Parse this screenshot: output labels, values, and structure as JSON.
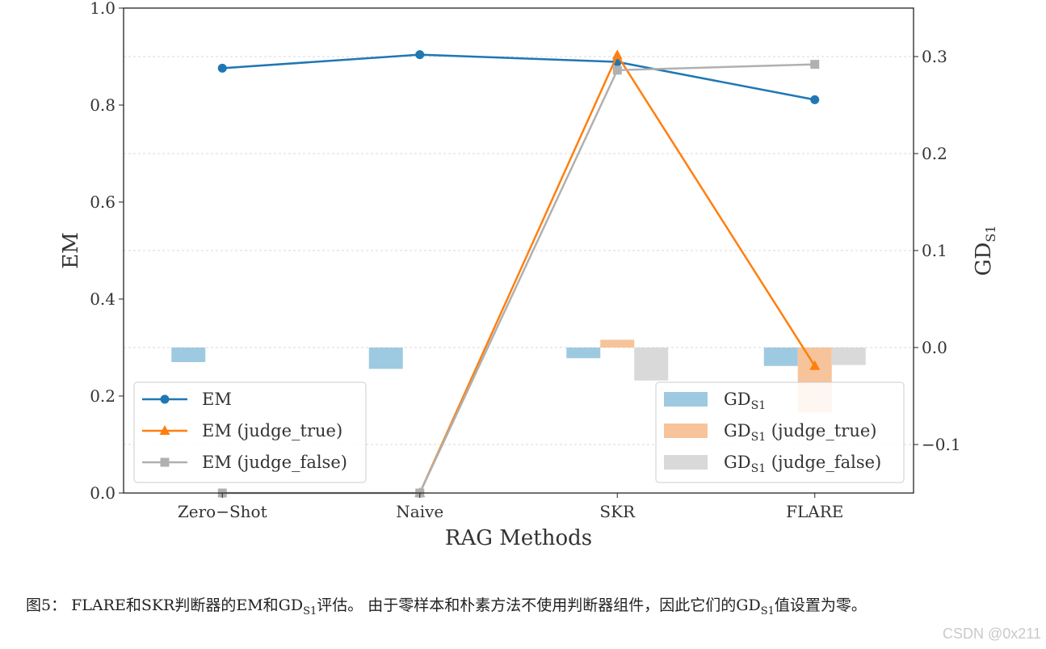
{
  "chart_data": {
    "type": "line",
    "categories": [
      "Zero−Shot",
      "Naive",
      "SKR",
      "FLARE"
    ],
    "xlabel": "RAG Methods",
    "ylabel": "EM",
    "ylabel2_main": "GD",
    "ylabel2_sub": "S1",
    "ylim": [
      0.0,
      1.0
    ],
    "ylim2": [
      -0.15,
      0.35
    ],
    "yticks": [
      "0.0",
      "0.2",
      "0.4",
      "0.6",
      "0.8",
      "1.0"
    ],
    "yticks2": [
      "−0.1",
      "0.0",
      "0.1",
      "0.2",
      "0.3"
    ],
    "line_series": [
      {
        "name": "EM",
        "marker": "circle",
        "color": "#1f77b4",
        "values": [
          0.876,
          0.904,
          0.889,
          0.811
        ]
      },
      {
        "name": "EM (judge_true)",
        "marker": "triangle",
        "color": "#ff7f0e",
        "values": [
          null,
          0.0,
          0.903,
          0.262
        ]
      },
      {
        "name": "EM (judge_false)",
        "marker": "square",
        "color": "#b0b0b0",
        "values": [
          0.0,
          0.0,
          0.872,
          0.884
        ]
      }
    ],
    "bar_series": [
      {
        "name": "GD",
        "name_sub": "S1",
        "color": "#9ecae1",
        "values": [
          -0.015,
          -0.022,
          -0.011,
          -0.019
        ]
      },
      {
        "name": "GD",
        "name_sub": "S1",
        "name_suffix": " (judge_true)",
        "color": "#f7c39a",
        "values": [
          null,
          null,
          0.008,
          -0.067
        ]
      },
      {
        "name": "GD",
        "name_sub": "S1",
        "name_suffix": " (judge_false)",
        "color": "#d9d9d9",
        "values": [
          null,
          null,
          -0.034,
          -0.018
        ]
      }
    ],
    "grid": true,
    "legend_lines": "bottom-left",
    "legend_bars": "bottom-right"
  },
  "caption": {
    "prefix": "图5：  FLARE和SKR判断器的EM和GD",
    "sub1": "S1",
    "mid": "评估。 由于零样本和朴素方法不使用判断器组件，因此它们的GD",
    "sub2": "S1",
    "suffix": "值设置为零。"
  },
  "watermark": "CSDN @0x211"
}
